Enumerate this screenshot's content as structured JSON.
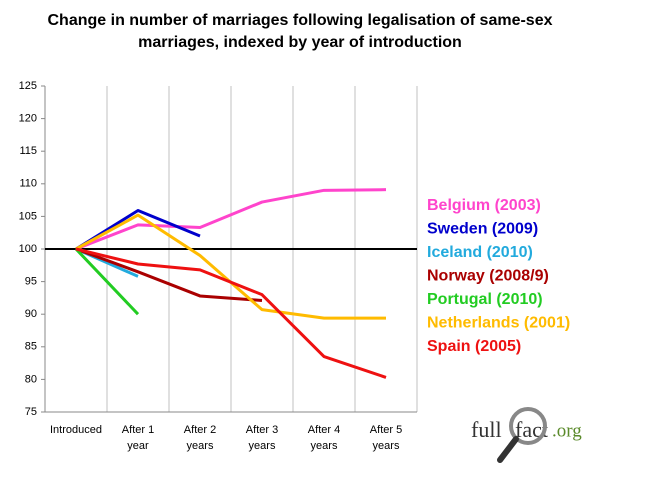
{
  "chart_data": {
    "type": "line",
    "title": "Change in number of marriages following legalisation of same-sex marriages, indexed by year of introduction",
    "categories": [
      "Introduced",
      "After 1 year",
      "After 2 years",
      "After 3 years",
      "After 4 years",
      "After 5 years"
    ],
    "series": [
      {
        "name": "Belgium (2003)",
        "color": "#ff44cc",
        "values": [
          100,
          103.7,
          103.3,
          107.2,
          109,
          109.1
        ]
      },
      {
        "name": "Sweden (2009)",
        "color": "#0000cc",
        "values": [
          100,
          105.9,
          102,
          null,
          null,
          null
        ]
      },
      {
        "name": "Iceland (2010)",
        "color": "#22aadd",
        "values": [
          100,
          95.8,
          null,
          null,
          null,
          null
        ]
      },
      {
        "name": "Norway (2008/9)",
        "color": "#aa0000",
        "values": [
          100,
          96.5,
          92.8,
          92.1,
          null,
          null
        ]
      },
      {
        "name": "Portugal (2010)",
        "color": "#22cc22",
        "values": [
          100,
          90,
          null,
          null,
          null,
          null
        ]
      },
      {
        "name": "Netherlands (2001)",
        "color": "#ffbb00",
        "values": [
          100,
          105.2,
          99,
          90.7,
          89.4,
          89.4
        ]
      },
      {
        "name": "Spain (2005)",
        "color": "#ee1111",
        "values": [
          100,
          97.7,
          96.8,
          93,
          83.5,
          80.3
        ]
      }
    ],
    "ylim": [
      75,
      125
    ],
    "yticks": [
      75,
      80,
      85,
      90,
      95,
      100,
      105,
      110,
      115,
      120,
      125
    ],
    "reference_line": 100,
    "logo": [
      "full",
      "fact",
      ".org"
    ]
  }
}
